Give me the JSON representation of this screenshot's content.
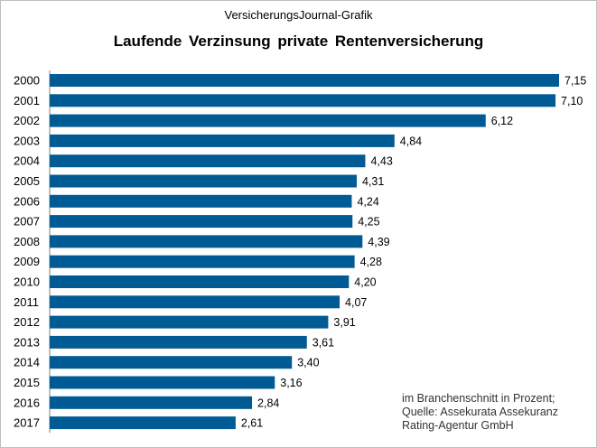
{
  "header": {
    "supertitle": "VersicherungsJournal-Grafik",
    "title": "Laufende  Verzinsung  private  Rentenversicherung"
  },
  "note": {
    "line1": "im Branchenschnitt  in Prozent;",
    "line2": "Quelle:  Assekurata Assekuranz",
    "line3": "Rating-Agentur  GmbH"
  },
  "chart_data": {
    "type": "bar",
    "orientation": "horizontal",
    "title": "Laufende  Verzinsung  private  Rentenversicherung",
    "categories": [
      "2000",
      "2001",
      "2002",
      "2003",
      "2004",
      "2005",
      "2006",
      "2007",
      "2008",
      "2009",
      "2010",
      "2011",
      "2012",
      "2013",
      "2014",
      "2015",
      "2016",
      "2017"
    ],
    "values": [
      7.15,
      7.1,
      6.12,
      4.84,
      4.43,
      4.31,
      4.24,
      4.25,
      4.39,
      4.28,
      4.2,
      4.07,
      3.91,
      3.61,
      3.4,
      3.16,
      2.84,
      2.61
    ],
    "labels": [
      "7,15",
      "7,10",
      "6,12",
      "4,84",
      "4,43",
      "4,31",
      "4,24",
      "4,25",
      "4,39",
      "4,28",
      "4,20",
      "4,07",
      "3,91",
      "3,61",
      "3,40",
      "3,16",
      "2,84",
      "2,61"
    ],
    "xlim": [
      0,
      7.15
    ],
    "grid": false,
    "bar_color": "#005b94"
  }
}
